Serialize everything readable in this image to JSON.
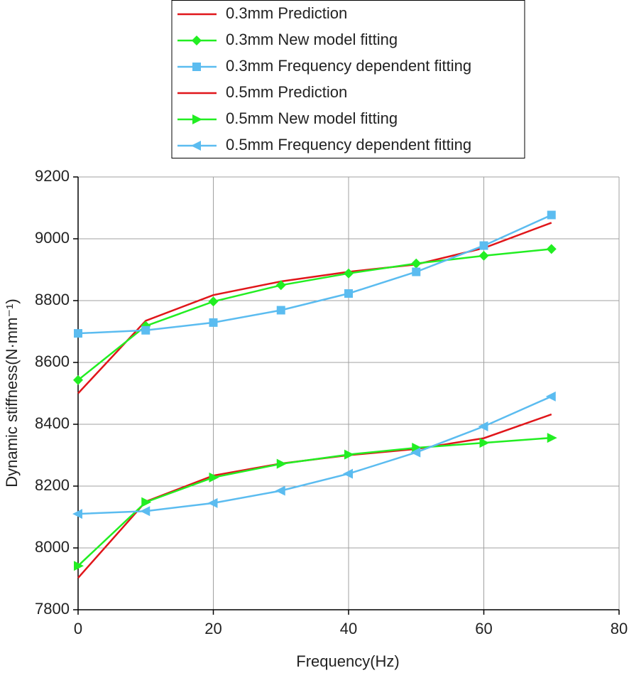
{
  "chart_data": {
    "type": "line",
    "x_label": "Frequency(Hz)",
    "y_label": "Dynamic stiffness(N·mm⁻¹)",
    "x": [
      0,
      10,
      20,
      30,
      40,
      50,
      60,
      70
    ],
    "series": [
      {
        "name": "0.3mm Prediction",
        "color": "#e0161a",
        "marker": "none",
        "values": [
          8500,
          8735,
          8818,
          8862,
          8893,
          8917,
          8970,
          9052
        ]
      },
      {
        "name": "0.3mm New model fitting",
        "color": "#22ee22",
        "marker": "diamond",
        "values": [
          8543,
          8718,
          8797,
          8850,
          8888,
          8920,
          8945,
          8967
        ]
      },
      {
        "name": "0.3mm Frequency dependent fitting",
        "color": "#5bbcf0",
        "marker": "square",
        "values": [
          8694,
          8704,
          8729,
          8769,
          8823,
          8893,
          8978,
          9077
        ]
      },
      {
        "name": "0.5mm Prediction",
        "color": "#e0161a",
        "marker": "none",
        "values": [
          7903,
          8150,
          8234,
          8273,
          8300,
          8320,
          8355,
          8432
        ]
      },
      {
        "name": "0.5mm New model fitting",
        "color": "#22ee22",
        "marker": "triangle-right",
        "values": [
          7942,
          8148,
          8228,
          8272,
          8302,
          8324,
          8340,
          8356
        ]
      },
      {
        "name": "0.5mm Frequency dependent fitting",
        "color": "#5bbcf0",
        "marker": "triangle-left",
        "values": [
          8110,
          8119,
          8145,
          8185,
          8240,
          8309,
          8393,
          8490
        ]
      }
    ],
    "xlim": [
      0,
      80
    ],
    "xticks": [
      0,
      20,
      40,
      60,
      80
    ],
    "ylim": [
      7800,
      9200
    ],
    "yticks": [
      7800,
      8000,
      8200,
      8400,
      8600,
      8800,
      9000,
      9200
    ],
    "grid": true,
    "legend": "top"
  }
}
